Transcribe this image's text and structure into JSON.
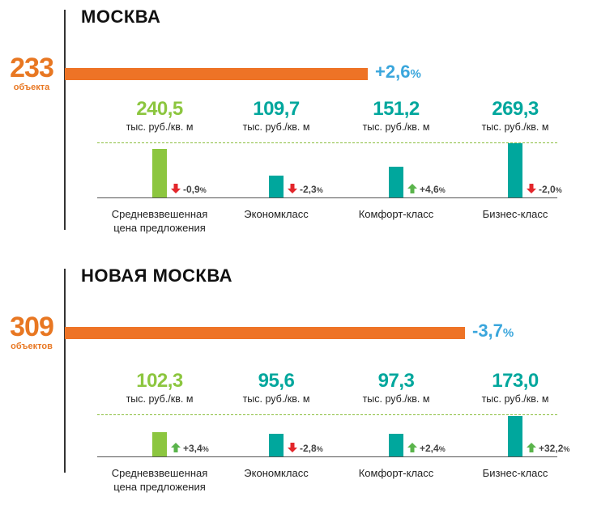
{
  "colors": {
    "orange": "#ee7326",
    "blue": "#3aa6dc",
    "green": "#8cc63f",
    "teal": "#00a79d",
    "down": "#e3262b",
    "up": "#5ab44b"
  },
  "icons": {
    "down": "arrow-down-icon",
    "up": "arrow-up-icon"
  },
  "value_unit": "тыс. руб./кв. м",
  "chart_data": [
    {
      "type": "bar",
      "title": "МОСКВА",
      "objects": {
        "count": "233",
        "label": "объекта",
        "change": "+2,6",
        "change_pct": "%"
      },
      "categories": [
        "Средневзвешенная цена предложения",
        "Экономкласс",
        "Комфорт-класс",
        "Бизнес-класс"
      ],
      "category_lines": [
        [
          "Средневзвешенная",
          "цена предложения"
        ],
        [
          "Экономкласс"
        ],
        [
          "Комфорт-класс"
        ],
        [
          "Бизнес-класс"
        ]
      ],
      "values": [
        240.5,
        109.7,
        151.2,
        269.3
      ],
      "value_labels": [
        "240,5",
        "109,7",
        "151,2",
        "269,3"
      ],
      "changes": [
        "-0,9",
        "-2,3",
        "+4,6",
        "-2,0"
      ],
      "change_dirs": [
        "down",
        "down",
        "up",
        "down"
      ],
      "average": 240.5
    },
    {
      "type": "bar",
      "title": "НОВАЯ МОСКВА",
      "objects": {
        "count": "309",
        "label": "объектов",
        "change": "-3,7",
        "change_pct": "%"
      },
      "categories": [
        "Средневзвешенная цена предложения",
        "Экономкласс",
        "Комфорт-класс",
        "Бизнес-класс"
      ],
      "category_lines": [
        [
          "Средневзвешенная",
          "цена предложения"
        ],
        [
          "Экономкласс"
        ],
        [
          "Комфорт-класс"
        ],
        [
          "Бизнес-класс"
        ]
      ],
      "values": [
        102.3,
        95.6,
        97.3,
        173.0
      ],
      "value_labels": [
        "102,3",
        "95,6",
        "97,3",
        "173,0"
      ],
      "changes": [
        "+3,4",
        "-2,8",
        "+2,4",
        "+32,2"
      ],
      "change_dirs": [
        "up",
        "down",
        "up",
        "up"
      ],
      "average": 102.3
    }
  ]
}
